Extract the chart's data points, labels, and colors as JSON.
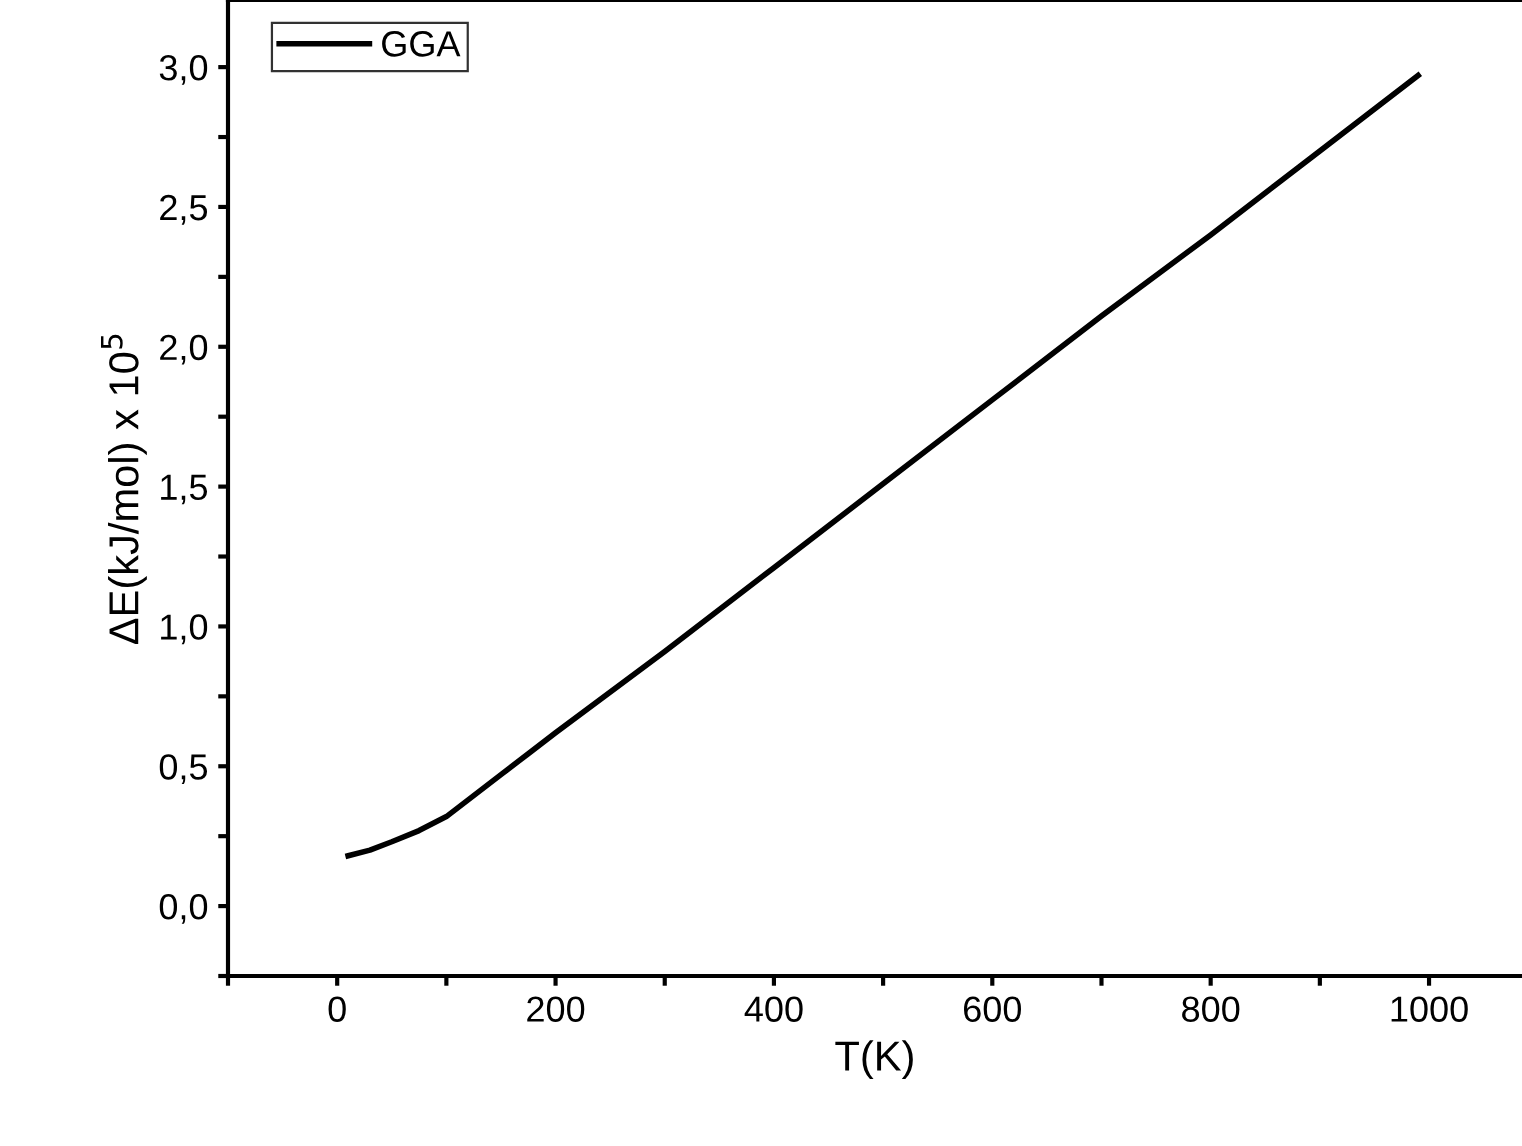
{
  "chart_data": {
    "type": "line",
    "xlabel": "T(K)",
    "ylabel": "ΔE(kJ/mol) x 10$^{5}$",
    "legend": "top left",
    "grid": false,
    "marker": "none",
    "line_style": "solid",
    "x": [
      10,
      30,
      50,
      75,
      100,
      125,
      150,
      175,
      200,
      300,
      400,
      500,
      600,
      700,
      800,
      900,
      990
    ],
    "series": [
      {
        "name": "GGA",
        "color": "#000000",
        "values": [
          0.18,
          0.2,
          0.23,
          0.27,
          0.32,
          0.395,
          0.47,
          0.545,
          0.62,
          0.91,
          1.21,
          1.51,
          1.81,
          2.11,
          2.4,
          2.7,
          2.97
        ]
      }
    ],
    "xlim": [
      -100,
      1085
    ],
    "ylim": [
      -0.25,
      3.24
    ],
    "xticks": [
      {
        "value": -100,
        "label": null
      },
      0,
      {
        "value": 100,
        "label": null
      },
      200,
      {
        "value": 300,
        "label": null
      },
      400,
      {
        "value": 500,
        "label": null
      },
      600,
      {
        "value": 700,
        "label": null
      },
      800,
      {
        "value": 900,
        "label": null
      },
      1000
    ],
    "yticks": [
      {
        "value": -0.25,
        "label": null
      },
      {
        "value": 0,
        "label": "0,0"
      },
      {
        "value": 0.25,
        "label": null
      },
      {
        "value": 0.5,
        "label": "0,5"
      },
      {
        "value": 0.75,
        "label": null
      },
      {
        "value": 1,
        "label": "1,0"
      },
      {
        "value": 1.25,
        "label": null
      },
      {
        "value": 1.5,
        "label": "1,5"
      },
      {
        "value": 1.75,
        "label": null
      },
      {
        "value": 2,
        "label": "2,0"
      },
      {
        "value": 2.25,
        "label": null
      },
      {
        "value": 2.5,
        "label": "2,5"
      },
      {
        "value": 2.75,
        "label": null
      },
      {
        "value": 3,
        "label": "3,0"
      }
    ]
  }
}
